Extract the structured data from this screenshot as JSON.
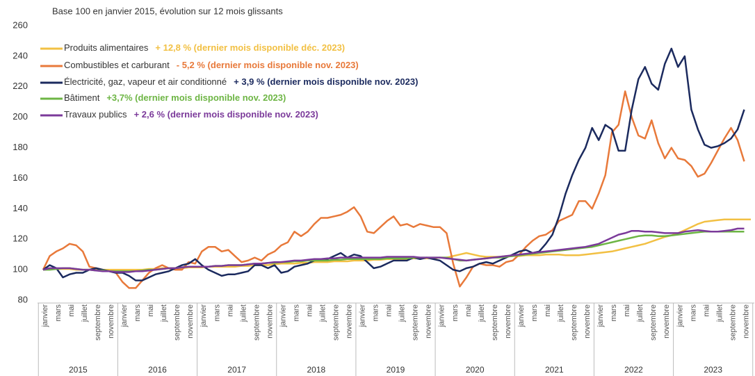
{
  "chart_data": {
    "type": "line",
    "subtitle": "Base 100 en janvier 2015, évolution sur 12 mois glissants",
    "categories": [
      "janvier",
      null,
      "mars",
      null,
      "mai",
      null,
      "juillet",
      null,
      "septembre",
      null,
      "novembre",
      null,
      "janvier",
      null,
      "mars",
      null,
      "mai",
      null,
      "juillet",
      null,
      "septembre",
      null,
      "novembre",
      null,
      "janvier",
      null,
      "mars",
      null,
      "mai",
      null,
      "juillet",
      null,
      "septembre",
      null,
      "novembre",
      null,
      "janvier",
      null,
      "mars",
      null,
      "mai",
      null,
      "juillet",
      null,
      "septembre",
      null,
      "novembre",
      null,
      "janvier",
      null,
      "mars",
      null,
      "mai",
      null,
      "juillet",
      null,
      "septembre",
      null,
      "novembre",
      null,
      "janvier",
      null,
      "mars",
      null,
      "mai",
      null,
      "juillet",
      null,
      "septembre",
      null,
      "novembre",
      null,
      "janvier",
      null,
      "mars",
      null,
      "mai",
      null,
      "juillet",
      null,
      "septembre",
      null,
      "novembre",
      null,
      "janvier",
      null,
      "mars",
      null,
      "mai",
      null,
      "juillet",
      null,
      "septembre",
      null,
      "novembre",
      null,
      "janvier",
      null,
      "mars",
      null,
      "mai",
      null,
      "juillet",
      null,
      "septembre",
      null,
      "novembre",
      null
    ],
    "years": [
      "2015",
      "2016",
      "2017",
      "2018",
      "2019",
      "2020",
      "2021",
      "2022",
      "2023"
    ],
    "ylim": [
      80,
      260
    ],
    "yticks": [
      80,
      100,
      120,
      140,
      160,
      180,
      200,
      220,
      240,
      260
    ],
    "series": [
      {
        "name": "Produits alimentaires",
        "annotation": "+ 12,8 % (dernier mois disponible déc. 2023)",
        "color": "#f2c043",
        "values": [
          100,
          100.5,
          100.5,
          100.5,
          100.5,
          100,
          100,
          100,
          100,
          100,
          100,
          100,
          100,
          100,
          100,
          100,
          100.5,
          100.5,
          101,
          101,
          101,
          101,
          101.5,
          101.5,
          101.5,
          102,
          102,
          102,
          102,
          102,
          102.5,
          102.5,
          103,
          103,
          103,
          103.5,
          104,
          104,
          104,
          104.5,
          104.5,
          105,
          105,
          105,
          105.5,
          105.5,
          105.5,
          106,
          106,
          106,
          106.5,
          106.5,
          107,
          107,
          107,
          107,
          107.5,
          107.5,
          107.5,
          107.5,
          108,
          108,
          109,
          110,
          111,
          110,
          109,
          108.5,
          108.5,
          108.5,
          109,
          109,
          109,
          109.5,
          109.5,
          109.5,
          110,
          110,
          110,
          109.5,
          109.5,
          109.5,
          110,
          110.5,
          111,
          111.5,
          112,
          113,
          114,
          115,
          116,
          117,
          118.5,
          120,
          121.5,
          122.5,
          124,
          126,
          128,
          130,
          131.5,
          132,
          132.5,
          133,
          133,
          133,
          133,
          133
        ]
      },
      {
        "name": "Combustibles et carburant",
        "annotation": "- 5,2 % (dernier mois disponible nov. 2023)",
        "color": "#e8793a",
        "values": [
          100,
          109,
          112,
          114,
          117,
          116,
          112,
          102,
          101,
          100,
          99,
          98,
          92,
          88,
          88,
          93,
          98,
          101,
          103,
          101,
          100,
          100,
          105,
          104,
          112,
          115,
          115,
          112,
          113,
          109,
          105,
          106,
          108,
          106,
          110,
          112,
          116,
          118,
          125,
          122,
          125,
          130,
          134,
          134,
          135,
          136,
          138,
          141,
          135,
          125,
          124,
          128,
          132,
          135,
          129,
          130,
          128,
          130,
          129,
          128,
          128,
          124,
          104,
          89,
          95,
          102,
          104,
          103,
          103,
          102,
          105,
          106,
          110,
          115,
          119,
          122,
          123,
          126,
          132,
          134,
          136,
          145,
          145,
          140,
          150,
          162,
          190,
          195,
          217,
          200,
          188,
          186,
          198,
          183,
          173,
          180,
          173,
          172,
          168,
          161,
          163,
          170,
          178,
          186,
          193,
          185,
          171,
          null
        ]
      },
      {
        "name": "Électricité, gaz, vapeur et air conditionné",
        "annotation": "+ 3,9 % (dernier mois disponible nov. 2023)",
        "color": "#1b2a5e",
        "values": [
          100,
          103,
          101,
          95,
          97,
          98,
          98,
          100,
          101,
          100,
          99,
          98,
          98,
          96,
          93,
          93,
          95,
          97,
          98,
          99,
          101,
          103,
          104,
          107,
          103,
          100,
          98,
          96,
          97,
          97,
          98,
          99,
          103,
          103,
          101,
          103,
          98,
          99,
          102,
          103,
          104,
          106,
          107,
          107,
          109,
          111,
          108,
          110,
          109,
          105,
          101,
          102,
          104,
          106,
          106,
          106,
          108,
          107,
          108,
          107,
          106,
          103,
          100,
          99,
          101,
          102,
          104,
          105,
          104,
          106,
          108,
          110,
          112,
          113,
          111,
          112,
          117,
          123,
          135,
          150,
          162,
          172,
          180,
          193,
          185,
          195,
          192,
          178,
          178,
          205,
          225,
          233,
          222,
          218,
          235,
          245,
          233,
          240,
          205,
          192,
          182,
          180,
          181,
          183,
          186,
          192,
          205,
          null
        ]
      },
      {
        "name": "Bâtiment",
        "annotation": "+3,7% (dernier mois disponible nov. 2023)",
        "color": "#6db544",
        "values": [
          100,
          100,
          100.5,
          101,
          101,
          100.5,
          100,
          100,
          99.5,
          99.5,
          99,
          99,
          99,
          99,
          99,
          99.5,
          100,
          100,
          100.5,
          101,
          101,
          101.5,
          102,
          102,
          102,
          102,
          102.5,
          102.5,
          103,
          103,
          103,
          103.5,
          104,
          104,
          104.5,
          104.5,
          105,
          105,
          105.5,
          105.5,
          106,
          106,
          106,
          106,
          106.5,
          106.5,
          107,
          107,
          107,
          107,
          107,
          107,
          107.5,
          107.5,
          107.5,
          107.5,
          108,
          108,
          108,
          108,
          108,
          108,
          107,
          106,
          106,
          106.5,
          107,
          107.5,
          108,
          108,
          108.5,
          109,
          109.5,
          110,
          110.5,
          111,
          111.5,
          112,
          112.5,
          113,
          113.5,
          114,
          114.5,
          115,
          116,
          117,
          118,
          119,
          120,
          121,
          122,
          122.5,
          122.5,
          122,
          122,
          122.5,
          123,
          123.5,
          124,
          124.5,
          125,
          125,
          125,
          125,
          125,
          125,
          125,
          null
        ]
      },
      {
        "name": "Travaux publics",
        "annotation": "+ 2,6 % (dernier mois disponible nov. 2023)",
        "color": "#7b3a9a",
        "values": [
          100,
          101,
          101,
          101,
          101,
          100.5,
          100,
          100,
          99.5,
          99,
          99,
          98.5,
          98.5,
          98.5,
          99,
          99,
          99.5,
          100,
          100.5,
          101,
          101,
          101.5,
          102,
          102,
          102,
          102,
          102.5,
          102.5,
          103,
          103,
          103,
          103.5,
          104,
          104,
          104.5,
          105,
          105,
          105.5,
          106,
          106,
          106.5,
          107,
          107,
          107.5,
          107.5,
          108,
          108,
          108,
          108,
          108,
          108,
          108,
          108.5,
          108.5,
          108.5,
          108.5,
          108.5,
          108,
          108,
          108,
          108,
          107.5,
          107,
          106.5,
          106,
          106.5,
          107,
          107.5,
          108,
          108.5,
          109,
          109.5,
          110,
          110.5,
          111,
          111.5,
          112,
          112.5,
          113,
          113.5,
          114,
          114.5,
          115,
          116,
          117,
          119,
          121,
          123,
          124,
          125.5,
          125.5,
          125,
          125,
          124.5,
          124,
          124,
          124,
          125,
          125.5,
          126,
          125.5,
          125,
          125,
          125.5,
          126,
          127,
          127,
          null
        ]
      }
    ]
  }
}
